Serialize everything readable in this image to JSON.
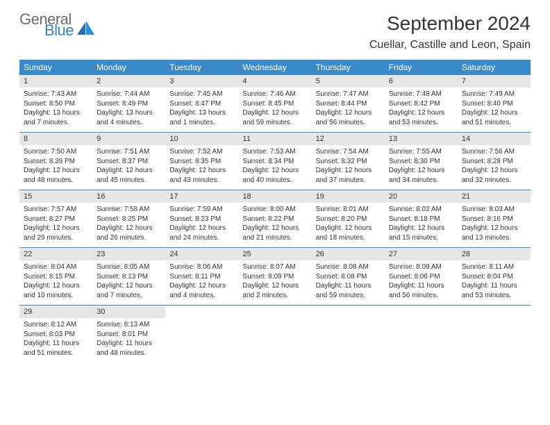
{
  "logo": {
    "general": "General",
    "blue": "Blue"
  },
  "title": "September 2024",
  "location": "Cuellar, Castille and Leon, Spain",
  "colors": {
    "header_bar": "#3a8ac9",
    "daynum_bg": "#e6e6e6",
    "week_border": "#3a8ac9",
    "logo_gray": "#6b6b6b",
    "logo_blue": "#3a7fc4"
  },
  "day_names": [
    "Sunday",
    "Monday",
    "Tuesday",
    "Wednesday",
    "Thursday",
    "Friday",
    "Saturday"
  ],
  "days": [
    {
      "n": "1",
      "sunrise": "7:43 AM",
      "sunset": "8:50 PM",
      "daylight": "13 hours and 7 minutes."
    },
    {
      "n": "2",
      "sunrise": "7:44 AM",
      "sunset": "8:49 PM",
      "daylight": "13 hours and 4 minutes."
    },
    {
      "n": "3",
      "sunrise": "7:45 AM",
      "sunset": "8:47 PM",
      "daylight": "13 hours and 1 minutes."
    },
    {
      "n": "4",
      "sunrise": "7:46 AM",
      "sunset": "8:45 PM",
      "daylight": "12 hours and 59 minutes."
    },
    {
      "n": "5",
      "sunrise": "7:47 AM",
      "sunset": "8:44 PM",
      "daylight": "12 hours and 56 minutes."
    },
    {
      "n": "6",
      "sunrise": "7:48 AM",
      "sunset": "8:42 PM",
      "daylight": "12 hours and 53 minutes."
    },
    {
      "n": "7",
      "sunrise": "7:49 AM",
      "sunset": "8:40 PM",
      "daylight": "12 hours and 51 minutes."
    },
    {
      "n": "8",
      "sunrise": "7:50 AM",
      "sunset": "8:39 PM",
      "daylight": "12 hours and 48 minutes."
    },
    {
      "n": "9",
      "sunrise": "7:51 AM",
      "sunset": "8:37 PM",
      "daylight": "12 hours and 45 minutes."
    },
    {
      "n": "10",
      "sunrise": "7:52 AM",
      "sunset": "8:35 PM",
      "daylight": "12 hours and 43 minutes."
    },
    {
      "n": "11",
      "sunrise": "7:53 AM",
      "sunset": "8:34 PM",
      "daylight": "12 hours and 40 minutes."
    },
    {
      "n": "12",
      "sunrise": "7:54 AM",
      "sunset": "8:32 PM",
      "daylight": "12 hours and 37 minutes."
    },
    {
      "n": "13",
      "sunrise": "7:55 AM",
      "sunset": "8:30 PM",
      "daylight": "12 hours and 34 minutes."
    },
    {
      "n": "14",
      "sunrise": "7:56 AM",
      "sunset": "8:28 PM",
      "daylight": "12 hours and 32 minutes."
    },
    {
      "n": "15",
      "sunrise": "7:57 AM",
      "sunset": "8:27 PM",
      "daylight": "12 hours and 29 minutes."
    },
    {
      "n": "16",
      "sunrise": "7:58 AM",
      "sunset": "8:25 PM",
      "daylight": "12 hours and 26 minutes."
    },
    {
      "n": "17",
      "sunrise": "7:59 AM",
      "sunset": "8:23 PM",
      "daylight": "12 hours and 24 minutes."
    },
    {
      "n": "18",
      "sunrise": "8:00 AM",
      "sunset": "8:22 PM",
      "daylight": "12 hours and 21 minutes."
    },
    {
      "n": "19",
      "sunrise": "8:01 AM",
      "sunset": "8:20 PM",
      "daylight": "12 hours and 18 minutes."
    },
    {
      "n": "20",
      "sunrise": "8:02 AM",
      "sunset": "8:18 PM",
      "daylight": "12 hours and 15 minutes."
    },
    {
      "n": "21",
      "sunrise": "8:03 AM",
      "sunset": "8:16 PM",
      "daylight": "12 hours and 13 minutes."
    },
    {
      "n": "22",
      "sunrise": "8:04 AM",
      "sunset": "8:15 PM",
      "daylight": "12 hours and 10 minutes."
    },
    {
      "n": "23",
      "sunrise": "8:05 AM",
      "sunset": "8:13 PM",
      "daylight": "12 hours and 7 minutes."
    },
    {
      "n": "24",
      "sunrise": "8:06 AM",
      "sunset": "8:11 PM",
      "daylight": "12 hours and 4 minutes."
    },
    {
      "n": "25",
      "sunrise": "8:07 AM",
      "sunset": "8:09 PM",
      "daylight": "12 hours and 2 minutes."
    },
    {
      "n": "26",
      "sunrise": "8:08 AM",
      "sunset": "8:08 PM",
      "daylight": "11 hours and 59 minutes."
    },
    {
      "n": "27",
      "sunrise": "8:09 AM",
      "sunset": "8:06 PM",
      "daylight": "11 hours and 56 minutes."
    },
    {
      "n": "28",
      "sunrise": "8:11 AM",
      "sunset": "8:04 PM",
      "daylight": "11 hours and 53 minutes."
    },
    {
      "n": "29",
      "sunrise": "8:12 AM",
      "sunset": "8:03 PM",
      "daylight": "11 hours and 51 minutes."
    },
    {
      "n": "30",
      "sunrise": "8:13 AM",
      "sunset": "8:01 PM",
      "daylight": "11 hours and 48 minutes."
    }
  ],
  "labels": {
    "sunrise": "Sunrise:",
    "sunset": "Sunset:",
    "daylight": "Daylight:"
  }
}
